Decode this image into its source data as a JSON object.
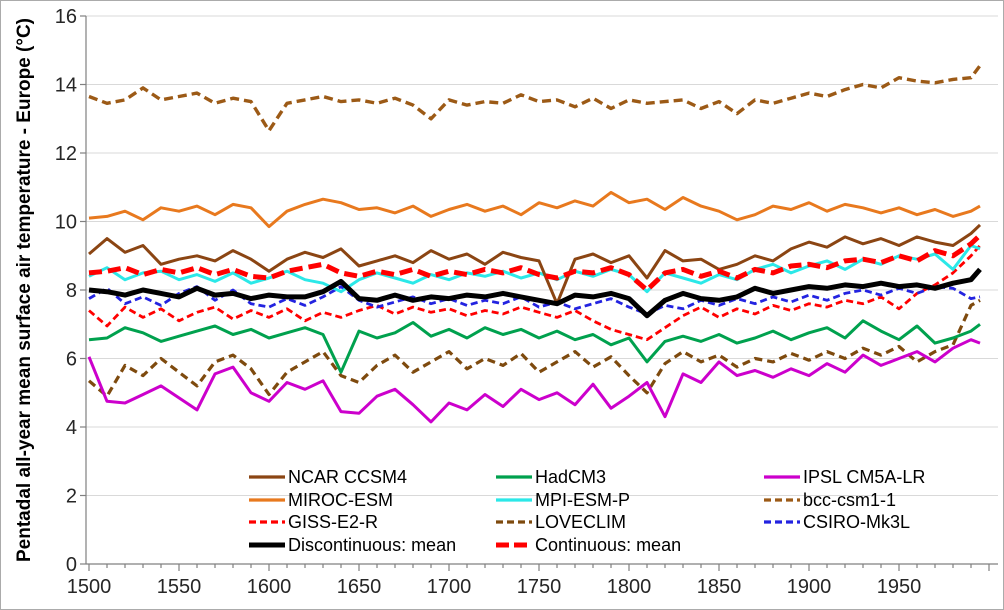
{
  "chart_data": {
    "type": "line",
    "title": "",
    "xlabel": "",
    "ylabel": "Pentadal all-year mean surface air temperature - Europe (°C)",
    "xlim": [
      1500,
      2005
    ],
    "ylim": [
      0,
      16
    ],
    "grid": "horizontal",
    "y_ticks": [
      0,
      2,
      4,
      6,
      8,
      10,
      12,
      14,
      16
    ],
    "x_ticks": [
      1500,
      1550,
      1600,
      1650,
      1700,
      1750,
      1800,
      1850,
      1900,
      1950
    ],
    "x_minor_tick_step": 10,
    "legend_position": "inside-bottom",
    "axis_color": "#808080",
    "grid_color": "#d9d9d9",
    "tick_label_color": "#262626",
    "x": [
      1500,
      1510,
      1520,
      1530,
      1540,
      1550,
      1560,
      1570,
      1580,
      1590,
      1600,
      1610,
      1620,
      1630,
      1640,
      1650,
      1660,
      1670,
      1680,
      1690,
      1700,
      1710,
      1720,
      1730,
      1740,
      1750,
      1760,
      1770,
      1780,
      1790,
      1800,
      1810,
      1820,
      1830,
      1840,
      1850,
      1860,
      1870,
      1880,
      1890,
      1900,
      1910,
      1920,
      1930,
      1940,
      1950,
      1960,
      1970,
      1980,
      1990,
      1995
    ],
    "series": [
      {
        "key": "bcc",
        "name": "bcc-csm1-1",
        "color": "#9c5a16",
        "width": 3.4,
        "dash": "9,5",
        "values": [
          13.65,
          13.45,
          13.55,
          13.9,
          13.55,
          13.65,
          13.75,
          13.45,
          13.6,
          13.5,
          12.65,
          13.45,
          13.55,
          13.65,
          13.5,
          13.55,
          13.45,
          13.6,
          13.4,
          13.0,
          13.55,
          13.4,
          13.5,
          13.45,
          13.7,
          13.5,
          13.55,
          13.35,
          13.6,
          13.3,
          13.55,
          13.45,
          13.5,
          13.55,
          13.3,
          13.5,
          13.15,
          13.55,
          13.45,
          13.6,
          13.75,
          13.65,
          13.85,
          14.0,
          13.9,
          14.2,
          14.1,
          14.05,
          14.15,
          14.2,
          14.55
        ]
      },
      {
        "key": "miroc",
        "name": "MIROC-ESM",
        "color": "#e8791e",
        "width": 3,
        "dash": null,
        "values": [
          10.1,
          10.15,
          10.3,
          10.05,
          10.4,
          10.3,
          10.45,
          10.2,
          10.5,
          10.4,
          9.85,
          10.3,
          10.5,
          10.65,
          10.55,
          10.35,
          10.4,
          10.25,
          10.45,
          10.15,
          10.35,
          10.5,
          10.3,
          10.45,
          10.2,
          10.55,
          10.4,
          10.6,
          10.45,
          10.85,
          10.55,
          10.65,
          10.35,
          10.7,
          10.45,
          10.3,
          10.05,
          10.2,
          10.45,
          10.35,
          10.55,
          10.3,
          10.5,
          10.4,
          10.25,
          10.4,
          10.2,
          10.35,
          10.15,
          10.3,
          10.45
        ]
      },
      {
        "key": "loveclim",
        "name": "LOVECLIM",
        "color": "#7e4a0e",
        "width": 3.2,
        "dash": "8,5",
        "values": [
          5.35,
          4.9,
          5.8,
          5.5,
          6.0,
          5.6,
          5.2,
          5.9,
          6.1,
          5.7,
          4.95,
          5.6,
          5.9,
          6.2,
          5.5,
          5.3,
          5.8,
          6.1,
          5.6,
          5.9,
          6.2,
          5.7,
          6.0,
          5.8,
          6.15,
          5.6,
          5.9,
          6.2,
          5.75,
          6.05,
          5.5,
          5.0,
          5.85,
          6.2,
          5.9,
          6.1,
          5.75,
          6.0,
          5.9,
          6.15,
          5.95,
          6.2,
          6.0,
          6.3,
          6.1,
          6.35,
          5.9,
          6.2,
          6.4,
          7.55,
          7.7
        ]
      },
      {
        "key": "ipsl",
        "name": "IPSL CM5A-LR",
        "color": "#cc00cc",
        "width": 3,
        "dash": null,
        "values": [
          6.05,
          4.75,
          4.7,
          4.95,
          5.2,
          4.85,
          4.5,
          5.55,
          5.75,
          5.0,
          4.75,
          5.3,
          5.1,
          5.35,
          4.45,
          4.4,
          4.9,
          5.1,
          4.65,
          4.15,
          4.7,
          4.5,
          4.95,
          4.6,
          5.1,
          4.8,
          5.0,
          4.65,
          5.25,
          4.55,
          4.9,
          5.3,
          4.3,
          5.55,
          5.3,
          5.9,
          5.5,
          5.65,
          5.45,
          5.7,
          5.5,
          5.85,
          5.6,
          6.1,
          5.8,
          6.0,
          6.2,
          5.9,
          6.3,
          6.55,
          6.45
        ]
      },
      {
        "key": "hadcm3",
        "name": "HadCM3",
        "color": "#00a14e",
        "width": 3,
        "dash": null,
        "values": [
          6.55,
          6.6,
          6.9,
          6.75,
          6.5,
          6.65,
          6.8,
          6.95,
          6.7,
          6.85,
          6.6,
          6.75,
          6.9,
          6.7,
          5.6,
          6.8,
          6.6,
          6.75,
          7.05,
          6.65,
          6.85,
          6.6,
          6.9,
          6.7,
          6.85,
          6.6,
          6.8,
          6.55,
          6.7,
          6.4,
          6.6,
          5.9,
          6.5,
          6.65,
          6.5,
          6.7,
          6.45,
          6.6,
          6.8,
          6.55,
          6.75,
          6.9,
          6.6,
          7.1,
          6.8,
          6.55,
          6.95,
          6.45,
          6.6,
          6.8,
          7.0
        ]
      },
      {
        "key": "giss",
        "name": "GISS-E2-R",
        "color": "#ff0000",
        "width": 2.8,
        "dash": "7,4",
        "values": [
          7.4,
          6.95,
          7.5,
          7.2,
          7.45,
          7.1,
          7.35,
          7.5,
          7.15,
          7.4,
          7.2,
          7.45,
          7.1,
          7.35,
          7.2,
          7.4,
          7.55,
          7.3,
          7.5,
          7.35,
          7.45,
          7.25,
          7.4,
          7.3,
          7.5,
          7.35,
          7.2,
          7.4,
          7.1,
          6.85,
          6.7,
          6.55,
          6.9,
          7.25,
          7.5,
          7.2,
          7.45,
          7.3,
          7.55,
          7.4,
          7.6,
          7.5,
          7.7,
          7.6,
          7.8,
          7.45,
          7.9,
          8.15,
          8.5,
          9.0,
          9.3
        ]
      },
      {
        "key": "csiro",
        "name": "CSIRO-Mk3L",
        "color": "#2323e0",
        "width": 2.8,
        "dash": "7,4",
        "values": [
          7.75,
          8.05,
          7.6,
          7.8,
          7.55,
          7.9,
          8.1,
          7.7,
          8.0,
          7.6,
          7.5,
          7.75,
          7.55,
          7.8,
          8.1,
          7.7,
          7.5,
          7.65,
          7.8,
          7.6,
          7.75,
          7.55,
          7.7,
          7.6,
          7.8,
          7.5,
          7.65,
          7.45,
          7.6,
          7.75,
          7.5,
          7.3,
          7.55,
          7.45,
          7.7,
          7.55,
          7.75,
          7.6,
          7.8,
          7.65,
          7.85,
          7.7,
          7.9,
          8.0,
          7.85,
          8.05,
          7.9,
          8.1,
          8.05,
          7.75,
          7.8
        ]
      },
      {
        "key": "mpi",
        "name": "MPI-ESM-P",
        "color": "#2be8e8",
        "width": 3,
        "dash": null,
        "values": [
          8.4,
          8.65,
          8.3,
          8.5,
          8.55,
          8.3,
          8.45,
          8.25,
          8.5,
          8.2,
          8.35,
          8.55,
          8.3,
          8.2,
          7.95,
          8.3,
          8.5,
          8.35,
          8.2,
          8.45,
          8.3,
          8.5,
          8.4,
          8.55,
          8.35,
          8.5,
          8.3,
          8.55,
          8.4,
          8.6,
          8.45,
          7.95,
          8.5,
          8.35,
          8.2,
          8.45,
          8.3,
          8.6,
          8.75,
          8.5,
          8.7,
          8.85,
          8.6,
          8.9,
          8.75,
          9.0,
          8.9,
          9.05,
          8.6,
          9.3,
          9.2
        ]
      },
      {
        "key": "ncar",
        "name": "NCAR CCSM4",
        "color": "#8b4513",
        "width": 3,
        "dash": null,
        "values": [
          9.05,
          9.5,
          9.1,
          9.3,
          8.75,
          8.9,
          9.0,
          8.85,
          9.15,
          8.9,
          8.55,
          8.9,
          9.1,
          8.95,
          9.2,
          8.7,
          8.85,
          9.0,
          8.8,
          9.15,
          8.9,
          9.05,
          8.75,
          9.1,
          8.95,
          8.85,
          7.6,
          8.9,
          9.05,
          8.8,
          9.0,
          8.35,
          9.15,
          8.85,
          8.9,
          8.6,
          8.75,
          9.0,
          8.85,
          9.2,
          9.4,
          9.25,
          9.55,
          9.35,
          9.5,
          9.3,
          9.55,
          9.4,
          9.3,
          9.65,
          9.9
        ]
      },
      {
        "key": "disc_mean",
        "name": "Discontinuous: mean",
        "color": "#000000",
        "width": 5,
        "dash": null,
        "values": [
          8.0,
          7.95,
          7.85,
          8.0,
          7.9,
          7.8,
          8.05,
          7.85,
          7.9,
          7.75,
          7.85,
          7.8,
          7.8,
          7.95,
          8.25,
          7.75,
          7.7,
          7.85,
          7.7,
          7.8,
          7.75,
          7.85,
          7.8,
          7.9,
          7.8,
          7.7,
          7.6,
          7.85,
          7.8,
          7.9,
          7.75,
          7.25,
          7.7,
          7.9,
          7.75,
          7.7,
          7.8,
          8.05,
          7.9,
          8.0,
          8.1,
          8.05,
          8.15,
          8.1,
          8.2,
          8.1,
          8.15,
          8.05,
          8.2,
          8.3,
          8.6
        ]
      },
      {
        "key": "cont_mean",
        "name": "Continuous: mean",
        "color": "#ff0000",
        "width": 5,
        "dash": "13,6",
        "values": [
          8.5,
          8.55,
          8.65,
          8.45,
          8.6,
          8.5,
          8.65,
          8.45,
          8.6,
          8.4,
          8.35,
          8.55,
          8.65,
          8.75,
          8.5,
          8.4,
          8.55,
          8.45,
          8.6,
          8.4,
          8.55,
          8.45,
          8.6,
          8.5,
          8.65,
          8.45,
          8.35,
          8.55,
          8.5,
          8.65,
          8.45,
          8.0,
          8.5,
          8.6,
          8.4,
          8.55,
          8.35,
          8.6,
          8.5,
          8.7,
          8.75,
          8.65,
          8.85,
          8.9,
          8.8,
          9.0,
          8.85,
          9.15,
          9.0,
          9.35,
          9.6
        ]
      }
    ],
    "legend": {
      "items": [
        {
          "label": "NCAR CCSM4",
          "series": "ncar",
          "row": 0,
          "col": 0
        },
        {
          "label": "HadCM3",
          "series": "hadcm3",
          "row": 0,
          "col": 1
        },
        {
          "label": "IPSL CM5A-LR",
          "series": "ipsl",
          "row": 0,
          "col": 2
        },
        {
          "label": "MIROC-ESM",
          "series": "miroc",
          "row": 1,
          "col": 0
        },
        {
          "label": "MPI-ESM-P",
          "series": "mpi",
          "row": 1,
          "col": 1
        },
        {
          "label": "bcc-csm1-1",
          "series": "bcc",
          "row": 1,
          "col": 2
        },
        {
          "label": "GISS-E2-R",
          "series": "giss",
          "row": 2,
          "col": 0
        },
        {
          "label": "LOVECLIM",
          "series": "loveclim",
          "row": 2,
          "col": 1
        },
        {
          "label": "CSIRO-Mk3L",
          "series": "csiro",
          "row": 2,
          "col": 2
        },
        {
          "label": "Discontinuous: mean",
          "series": "disc_mean",
          "row": 3,
          "col": 0
        },
        {
          "label": "Continuous: mean",
          "series": "cont_mean",
          "row": 3,
          "col": 1
        }
      ]
    }
  }
}
